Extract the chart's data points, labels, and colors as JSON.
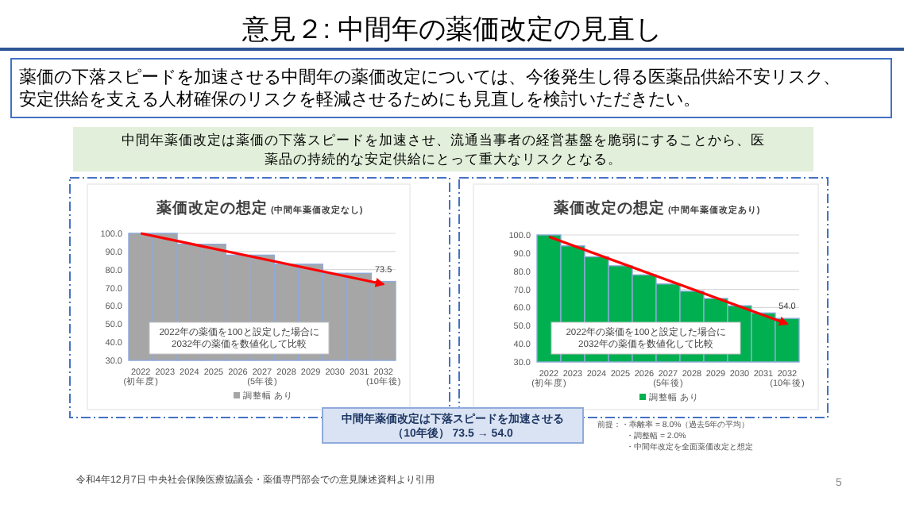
{
  "chart_data": [
    {
      "type": "other",
      "title": "意見２: 中間年の薬価改定の見直し",
      "annotations": [
        "薬価の下落スピードを加速させる中間年の薬価改定については、今後発生し得る医薬品供給不安リスク、安定供給を支える人材確保のリスクを軽減させるためにも見直しを検討いただきたい。",
        "中間年薬価改定は薬価の下落スピードを加速させ、流通当事者の経営基盤を脆弱にすることから、医薬品の持続的な安定供給にとって重大なリスクとなる。"
      ]
    },
    {
      "type": "bar",
      "title": "薬価改定の想定",
      "subtitle": "(中間年薬価改定なし)",
      "categories": [
        "2022\n(初年度)",
        "2023",
        "2024",
        "2025",
        "2026",
        "2027\n(5年後)",
        "2028",
        "2029",
        "2030",
        "2031",
        "2032\n(10年後)"
      ],
      "series": [
        {
          "name": "調整幅 あり",
          "color": "#a6a6a6",
          "values": [
            100,
            100,
            94,
            94,
            88,
            88,
            83,
            83,
            78,
            78,
            73.5
          ],
          "value_labels": [
            null,
            null,
            null,
            null,
            null,
            null,
            null,
            null,
            null,
            null,
            "73.5"
          ]
        },
        {
          "type": "line",
          "color": "#ff0000",
          "x": [
            "2022\n(初年度)",
            "2032\n(10年後)"
          ],
          "values": [
            100,
            72
          ]
        }
      ],
      "ylim": [
        30,
        100
      ],
      "yticks": [
        {
          "value": 30,
          "label": "30.0"
        },
        {
          "value": 40,
          "label": "40.0"
        },
        {
          "value": 50,
          "label": "50.0"
        },
        {
          "value": 60,
          "label": "60.0"
        },
        {
          "value": 70,
          "label": "70.0"
        },
        {
          "value": 80,
          "label": "80.0"
        },
        {
          "value": 90,
          "label": "90.0"
        },
        {
          "value": 100,
          "label": "100.0"
        }
      ],
      "grid": "y",
      "legend": "bottom",
      "annotations": [
        "2022年の薬価を100と設定した場合に\n2032年の薬価を数値化して比較"
      ]
    },
    {
      "type": "bar",
      "title": "薬価改定の想定",
      "subtitle": "(中間年薬価改定あり)",
      "categories": [
        "2022\n(初年度)",
        "2023",
        "2024",
        "2025",
        "2026",
        "2027\n(5年後)",
        "2028",
        "2029",
        "2030",
        "2031",
        "2032\n(10年後)"
      ],
      "series": [
        {
          "name": "調整幅 あり",
          "color": "#00b050",
          "values": [
            100,
            94,
            88,
            83,
            78,
            73,
            69,
            65,
            61,
            57,
            54.0
          ],
          "value_labels": [
            null,
            null,
            null,
            null,
            null,
            null,
            null,
            null,
            null,
            null,
            "54.0"
          ]
        },
        {
          "type": "line",
          "color": "#ff0000",
          "x": [
            "2022\n(初年度)",
            "2032\n(10年後)"
          ],
          "values": [
            99,
            51
          ]
        }
      ],
      "ylim": [
        30,
        100
      ],
      "yticks": [
        {
          "value": 30,
          "label": "30.0"
        },
        {
          "value": 40,
          "label": "40.0"
        },
        {
          "value": 50,
          "label": "50.0"
        },
        {
          "value": 60,
          "label": "60.0"
        },
        {
          "value": 70,
          "label": "70.0"
        },
        {
          "value": 80,
          "label": "80.0"
        },
        {
          "value": 90,
          "label": "90.0"
        },
        {
          "value": 100,
          "label": "100.0"
        }
      ],
      "grid": "y",
      "legend": "bottom",
      "annotations": [
        "2022年の薬価を100と設定した場合に\n2032年の薬価を数値化して比較"
      ]
    },
    {
      "type": "other",
      "annotations": [
        "中間年薬価改定は下落スピードを加速させる（10年後） 73.5 → 54.0",
        "前提：・乖離率 = 8.0%（過去5年の平均）",
        "・調整幅 = 2.0%",
        "・中間年改定を全面薬価改定と想定",
        "令和4年12月7日 中央社会保険医療協議会・薬価専門部会での意見陳述資料より引用",
        "5"
      ]
    }
  ]
}
